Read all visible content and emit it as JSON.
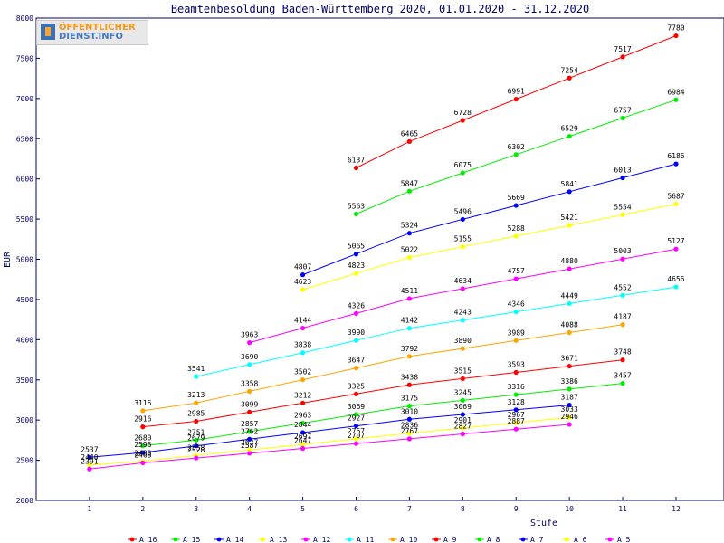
{
  "chart_data": {
    "type": "line",
    "title": "Beamtenbesoldung Baden-Württemberg 2020, 01.01.2020 - 31.12.2020",
    "xlabel": "Stufe",
    "ylabel": "EUR",
    "xlim": [
      0,
      12.9
    ],
    "ylim": [
      2000,
      8000
    ],
    "x_ticks": [
      1,
      2,
      3,
      4,
      5,
      6,
      7,
      8,
      9,
      10,
      11,
      12
    ],
    "y_ticks": [
      2000,
      2500,
      3000,
      3500,
      4000,
      4500,
      5000,
      5500,
      6000,
      6500,
      7000,
      7500,
      8000
    ],
    "grid": false,
    "legend_position": "bottom",
    "series": [
      {
        "name": "A_16",
        "color": "#ff0000",
        "x": [
          6,
          7,
          8,
          9,
          10,
          11,
          12
        ],
        "values": [
          6137,
          6465,
          6728,
          6991,
          7254,
          7517,
          7780
        ]
      },
      {
        "name": "A_15",
        "color": "#00ee00",
        "x": [
          6,
          7,
          8,
          9,
          10,
          11,
          12
        ],
        "values": [
          5563,
          5847,
          6075,
          6302,
          6529,
          6757,
          6984
        ]
      },
      {
        "name": "A_14",
        "color": "#0000ff",
        "x": [
          5,
          6,
          7,
          8,
          9,
          10,
          11,
          12
        ],
        "values": [
          4807,
          5065,
          5324,
          5496,
          5669,
          5841,
          6013,
          6186
        ]
      },
      {
        "name": "A_13",
        "color": "#ffff00",
        "x": [
          5,
          6,
          7,
          8,
          9,
          10,
          11,
          12
        ],
        "values": [
          4623,
          4823,
          5022,
          5155,
          5288,
          5421,
          5554,
          5687
        ]
      },
      {
        "name": "A_12",
        "color": "#ff00ff",
        "x": [
          4,
          5,
          6,
          7,
          8,
          9,
          10,
          11,
          12
        ],
        "values": [
          3963,
          4144,
          4326,
          4511,
          4634,
          4757,
          4880,
          5003,
          5127
        ]
      },
      {
        "name": "A_11",
        "color": "#00ffff",
        "x": [
          3,
          4,
          5,
          6,
          7,
          8,
          9,
          10,
          11,
          12
        ],
        "values": [
          3541,
          3690,
          3838,
          3990,
          4142,
          4243,
          4346,
          4449,
          4552,
          4656
        ]
      },
      {
        "name": "A_10",
        "color": "#ffa500",
        "x": [
          2,
          3,
          4,
          5,
          6,
          7,
          8,
          9,
          10,
          11
        ],
        "values": [
          3116,
          3213,
          3358,
          3502,
          3647,
          3792,
          3890,
          3989,
          4088,
          4187
        ]
      },
      {
        "name": "A_9",
        "color": "#ff0000",
        "x": [
          2,
          3,
          4,
          5,
          6,
          7,
          8,
          9,
          10,
          11
        ],
        "values": [
          2916,
          2985,
          3099,
          3212,
          3325,
          3438,
          3515,
          3593,
          3671,
          3748
        ]
      },
      {
        "name": "A_8",
        "color": "#00ee00",
        "x": [
          2,
          3,
          4,
          5,
          6,
          7,
          8,
          9,
          10,
          11
        ],
        "values": [
          2680,
          2751,
          2857,
          2963,
          3069,
          3175,
          3245,
          3316,
          3386,
          3457
        ]
      },
      {
        "name": "A_7",
        "color": "#0000ff",
        "x": [
          1,
          2,
          3,
          4,
          5,
          6,
          7,
          8,
          9,
          10
        ],
        "values": [
          2537,
          2596,
          2679,
          2762,
          2844,
          2927,
          3010,
          3069,
          3128,
          3187
        ]
      },
      {
        "name": "A_6",
        "color": "#ffff00",
        "x": [
          1,
          2,
          3,
          4,
          5,
          6,
          7,
          8,
          9,
          10
        ],
        "values": [
          2440,
          2488,
          2558,
          2627,
          2697,
          2767,
          2836,
          2901,
          2967,
          3033
        ]
      },
      {
        "name": "A_5",
        "color": "#ff00ff",
        "x": [
          1,
          2,
          3,
          4,
          5,
          6,
          7,
          8,
          9,
          10
        ],
        "values": [
          2391,
          2468,
          2528,
          2587,
          2647,
          2707,
          2767,
          2827,
          2887,
          2946
        ]
      }
    ]
  },
  "logo": {
    "line1": "ÖFFENTLICHER",
    "line2": "DIENST.INFO"
  }
}
